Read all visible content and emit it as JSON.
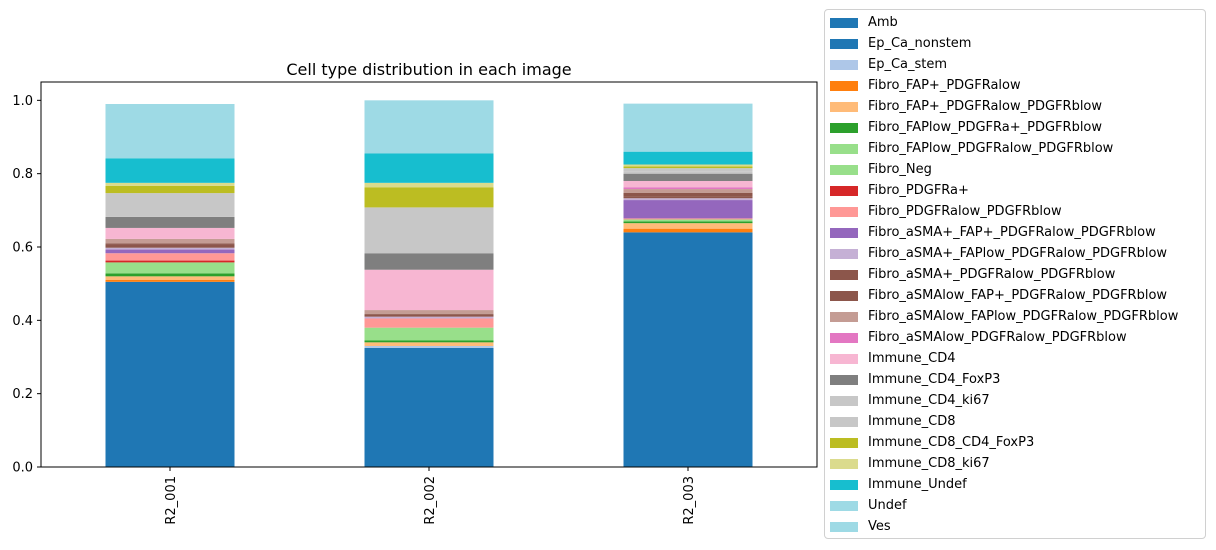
{
  "chart_data": {
    "type": "bar",
    "stacked": true,
    "title": "Cell type distribution in each image",
    "xlabel": "",
    "ylabel": "",
    "ylim": [
      0,
      1.05
    ],
    "yticks": [
      "0.0",
      "0.2",
      "0.4",
      "0.6",
      "0.8",
      "1.0"
    ],
    "categories": [
      "R2_001",
      "R2_002",
      "R2_003"
    ],
    "legend_position": "outside-right",
    "grid": false,
    "series": [
      {
        "name": "Amb",
        "color": "#1f77b4",
        "values": [
          0.0,
          0.0,
          0.0
        ]
      },
      {
        "name": "Ep_Ca_nonstem",
        "color": "#1f77b4",
        "values": [
          0.505,
          0.325,
          0.64
        ]
      },
      {
        "name": "Ep_Ca_stem",
        "color": "#aec7e8",
        "values": [
          0.0,
          0.005,
          0.0
        ]
      },
      {
        "name": "Fibro_FAP+_PDGFRalow",
        "color": "#ff7f0e",
        "values": [
          0.005,
          0.0,
          0.01
        ]
      },
      {
        "name": "Fibro_FAP+_PDGFRalow_PDGFRblow",
        "color": "#ffbb78",
        "values": [
          0.01,
          0.01,
          0.015
        ]
      },
      {
        "name": "Fibro_FAPlow_PDGFRa+_PDGFRblow",
        "color": "#2ca02c",
        "values": [
          0.008,
          0.005,
          0.005
        ]
      },
      {
        "name": "Fibro_FAPlow_PDGFRalow_PDGFRblow",
        "color": "#98df8a",
        "values": [
          0.03,
          0.03,
          0.005
        ]
      },
      {
        "name": "Fibro_Neg",
        "color": "#98df8a",
        "values": [
          0.0,
          0.005,
          0.0
        ]
      },
      {
        "name": "Fibro_PDGFRa+",
        "color": "#d62728",
        "values": [
          0.005,
          0.0,
          0.0
        ]
      },
      {
        "name": "Fibro_PDGFRalow_PDGFRblow",
        "color": "#ff9896",
        "values": [
          0.02,
          0.025,
          0.003
        ]
      },
      {
        "name": "Fibro_aSMA+_FAP+_PDGFRalow_PDGFRblow",
        "color": "#9467bd",
        "values": [
          0.01,
          0.0,
          0.05
        ]
      },
      {
        "name": "Fibro_aSMA+_FAPlow_PDGFRalow_PDGFRblow",
        "color": "#c5b0d5",
        "values": [
          0.005,
          0.005,
          0.005
        ]
      },
      {
        "name": "Fibro_aSMA+_PDGFRalow_PDGFRblow",
        "color": "#8c564b",
        "values": [
          0.01,
          0.005,
          0.005
        ]
      },
      {
        "name": "Fibro_aSMAlow_FAP+_PDGFRalow_PDGFRblow",
        "color": "#8c564b",
        "values": [
          0.002,
          0.003,
          0.01
        ]
      },
      {
        "name": "Fibro_aSMAlow_FAPlow_PDGFRalow_PDGFRblow",
        "color": "#c49c94",
        "values": [
          0.012,
          0.01,
          0.01
        ]
      },
      {
        "name": "Fibro_aSMAlow_PDGFRalow_PDGFRblow",
        "color": "#e377c2",
        "values": [
          0.0,
          0.0,
          0.005
        ]
      },
      {
        "name": "Immune_CD4",
        "color": "#f7b6d2",
        "values": [
          0.03,
          0.11,
          0.017
        ]
      },
      {
        "name": "Immune_CD4_FoxP3",
        "color": "#7f7f7f",
        "values": [
          0.03,
          0.045,
          0.02
        ]
      },
      {
        "name": "Immune_CD4_ki67",
        "color": "#c7c7c7",
        "values": [
          0.0,
          0.0,
          0.005
        ]
      },
      {
        "name": "Immune_CD8",
        "color": "#c7c7c7",
        "values": [
          0.065,
          0.125,
          0.01
        ]
      },
      {
        "name": "Immune_CD8_CD4_FoxP3",
        "color": "#bcbd22",
        "values": [
          0.02,
          0.055,
          0.005
        ]
      },
      {
        "name": "Immune_CD8_ki67",
        "color": "#dbdb8d",
        "values": [
          0.008,
          0.012,
          0.005
        ]
      },
      {
        "name": "Immune_Undef",
        "color": "#17becf",
        "values": [
          0.067,
          0.08,
          0.035
        ]
      },
      {
        "name": "Undef",
        "color": "#9edae5",
        "values": [
          0.148,
          0.145,
          0.131
        ]
      },
      {
        "name": "Ves",
        "color": "#9edae5",
        "values": [
          0.0,
          0.0,
          0.0
        ]
      }
    ]
  }
}
